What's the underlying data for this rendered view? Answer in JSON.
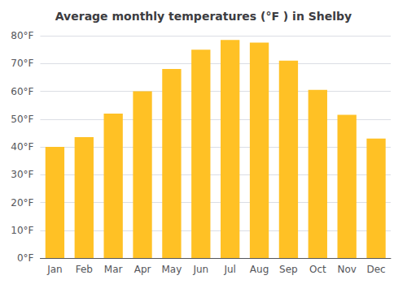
{
  "chart_data": {
    "type": "bar",
    "title": "Average monthly temperatures (°F ) in Shelby",
    "categories": [
      "Jan",
      "Feb",
      "Mar",
      "Apr",
      "May",
      "Jun",
      "Jul",
      "Aug",
      "Sep",
      "Oct",
      "Nov",
      "Dec"
    ],
    "values": [
      40,
      43.5,
      52,
      60,
      68,
      75,
      78.5,
      77.5,
      71,
      60.5,
      51.5,
      43
    ],
    "color": "#FFC125",
    "ylim": [
      0,
      80
    ],
    "yticks": [
      {
        "value": 0,
        "label": "0°F"
      },
      {
        "value": 10,
        "label": "10°F"
      },
      {
        "value": 20,
        "label": "20°F"
      },
      {
        "value": 30,
        "label": "30°F"
      },
      {
        "value": 40,
        "label": "40°F"
      },
      {
        "value": 50,
        "label": "50°F"
      },
      {
        "value": 60,
        "label": "60°F"
      },
      {
        "value": 70,
        "label": "70°F"
      },
      {
        "value": 80,
        "label": "80°F"
      }
    ],
    "grid": true
  }
}
